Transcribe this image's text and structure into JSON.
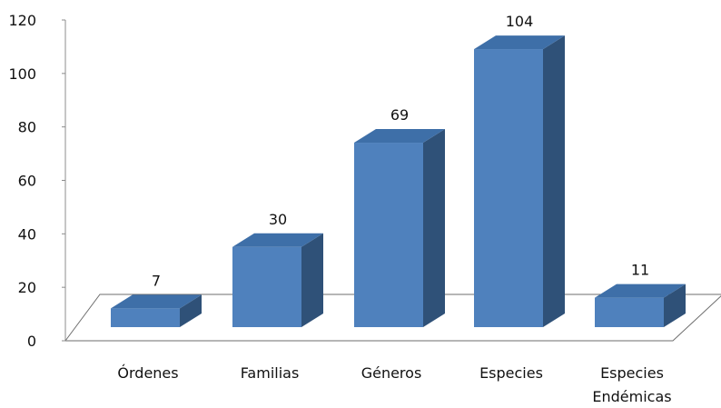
{
  "chart_data": {
    "type": "bar",
    "style": "3d-column",
    "categories": [
      "Órdenes",
      "Familias",
      "Géneros",
      "Especies",
      [
        "Especies",
        "Endémicas"
      ]
    ],
    "values": [
      7,
      30,
      69,
      104,
      11
    ],
    "data_labels": [
      "7",
      "30",
      "69",
      "104",
      "11"
    ],
    "yticks": [
      "0",
      "20",
      "40",
      "60",
      "80",
      "100",
      "120"
    ],
    "ylim": [
      0,
      120
    ],
    "title": "",
    "xlabel": "",
    "ylabel": "",
    "grid": false,
    "legend": "none",
    "colors": {
      "front": "#4F81BD",
      "top": "#3E6FA8",
      "side": "#2F5178",
      "floor_edge": "#6E6E6E",
      "axis": "#8C8C8C"
    }
  }
}
